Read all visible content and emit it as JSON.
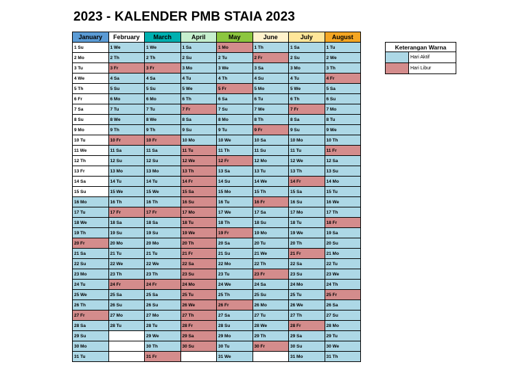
{
  "title": "2023 - KALENDER PMB STAIA 2023",
  "colors": {
    "aktif": "#add8e6",
    "libur": "#d48c8c"
  },
  "legend": {
    "title": "Keterangan Warna",
    "items": [
      {
        "label": "Hari Aktif",
        "type": "a"
      },
      {
        "label": "Hari Libur",
        "type": "h"
      }
    ]
  },
  "months": [
    {
      "name": "January",
      "color": "#5b9bd5",
      "days": [
        [
          "1 Su",
          "w"
        ],
        [
          "2 Mo",
          "w"
        ],
        [
          "3 Tu",
          "w"
        ],
        [
          "4 We",
          "w"
        ],
        [
          "5 Th",
          "w"
        ],
        [
          "6 Fr",
          "w"
        ],
        [
          "7 Sa",
          "w"
        ],
        [
          "8 Su",
          "w"
        ],
        [
          "9 Mo",
          "w"
        ],
        [
          "10 Tu",
          "w"
        ],
        [
          "11 We",
          "w"
        ],
        [
          "12 Th",
          "w"
        ],
        [
          "13 Fr",
          "w"
        ],
        [
          "14 Sa",
          "w"
        ],
        [
          "15 Su",
          "w"
        ],
        [
          "16 Mo",
          "a"
        ],
        [
          "17 Tu",
          "a"
        ],
        [
          "18 We",
          "a"
        ],
        [
          "19 Th",
          "a"
        ],
        [
          "20 Fr",
          "h"
        ],
        [
          "21 Sa",
          "a"
        ],
        [
          "22 Su",
          "a"
        ],
        [
          "23 Mo",
          "a"
        ],
        [
          "24 Tu",
          "a"
        ],
        [
          "25 We",
          "a"
        ],
        [
          "26 Th",
          "a"
        ],
        [
          "27 Fr",
          "h"
        ],
        [
          "28 Sa",
          "a"
        ],
        [
          "29 Su",
          "a"
        ],
        [
          "30 Mo",
          "a"
        ],
        [
          "31 Tu",
          "a"
        ]
      ]
    },
    {
      "name": "February",
      "color": "#ffffff",
      "days": [
        [
          "1 We",
          "a"
        ],
        [
          "2 Th",
          "a"
        ],
        [
          "3 Fr",
          "h"
        ],
        [
          "4 Sa",
          "a"
        ],
        [
          "5 Su",
          "a"
        ],
        [
          "6 Mo",
          "a"
        ],
        [
          "7 Tu",
          "a"
        ],
        [
          "8 We",
          "a"
        ],
        [
          "9 Th",
          "a"
        ],
        [
          "10 Fr",
          "h"
        ],
        [
          "11 Sa",
          "a"
        ],
        [
          "12 Su",
          "a"
        ],
        [
          "13 Mo",
          "a"
        ],
        [
          "14 Tu",
          "a"
        ],
        [
          "15 We",
          "a"
        ],
        [
          "16 Th",
          "a"
        ],
        [
          "17 Fr",
          "h"
        ],
        [
          "18 Sa",
          "a"
        ],
        [
          "19 Su",
          "a"
        ],
        [
          "20 Mo",
          "a"
        ],
        [
          "21 Tu",
          "a"
        ],
        [
          "22 We",
          "a"
        ],
        [
          "23 Th",
          "a"
        ],
        [
          "24 Fr",
          "h"
        ],
        [
          "25 Sa",
          "a"
        ],
        [
          "26 Su",
          "a"
        ],
        [
          "27 Mo",
          "a"
        ],
        [
          "28 Tu",
          "a"
        ]
      ]
    },
    {
      "name": "March",
      "color": "#00b0b0",
      "days": [
        [
          "1 We",
          "a"
        ],
        [
          "2 Th",
          "a"
        ],
        [
          "3 Fr",
          "h"
        ],
        [
          "4 Sa",
          "a"
        ],
        [
          "5 Su",
          "a"
        ],
        [
          "6 Mo",
          "a"
        ],
        [
          "7 Tu",
          "a"
        ],
        [
          "8 We",
          "a"
        ],
        [
          "9 Th",
          "a"
        ],
        [
          "10 Fr",
          "h"
        ],
        [
          "11 Sa",
          "a"
        ],
        [
          "12 Su",
          "a"
        ],
        [
          "13 Mo",
          "a"
        ],
        [
          "14 Tu",
          "a"
        ],
        [
          "15 We",
          "a"
        ],
        [
          "16 Th",
          "a"
        ],
        [
          "17 Fr",
          "h"
        ],
        [
          "18 Sa",
          "a"
        ],
        [
          "19 Su",
          "a"
        ],
        [
          "20 Mo",
          "a"
        ],
        [
          "21 Tu",
          "a"
        ],
        [
          "22 We",
          "a"
        ],
        [
          "23 Th",
          "a"
        ],
        [
          "24 Fr",
          "h"
        ],
        [
          "25 Sa",
          "a"
        ],
        [
          "26 Su",
          "a"
        ],
        [
          "27 Mo",
          "a"
        ],
        [
          "28 Tu",
          "a"
        ],
        [
          "29 We",
          "a"
        ],
        [
          "30 Th",
          "a"
        ],
        [
          "31 Fr",
          "h"
        ]
      ]
    },
    {
      "name": "April",
      "color": "#c6efce",
      "days": [
        [
          "1 Sa",
          "a"
        ],
        [
          "2 Su",
          "a"
        ],
        [
          "3 Mo",
          "a"
        ],
        [
          "4 Tu",
          "a"
        ],
        [
          "5 We",
          "a"
        ],
        [
          "6 Th",
          "a"
        ],
        [
          "7 Fr",
          "h"
        ],
        [
          "8 Sa",
          "a"
        ],
        [
          "9 Su",
          "a"
        ],
        [
          "10 Mo",
          "a"
        ],
        [
          "11 Tu",
          "h"
        ],
        [
          "12 We",
          "h"
        ],
        [
          "13 Th",
          "h"
        ],
        [
          "14 Fr",
          "h"
        ],
        [
          "15 Sa",
          "h"
        ],
        [
          "16 Su",
          "h"
        ],
        [
          "17 Mo",
          "h"
        ],
        [
          "18 Tu",
          "h"
        ],
        [
          "19 We",
          "h"
        ],
        [
          "20 Th",
          "h"
        ],
        [
          "21 Fr",
          "h"
        ],
        [
          "22 Sa",
          "h"
        ],
        [
          "23 Su",
          "h"
        ],
        [
          "24 Mo",
          "h"
        ],
        [
          "25 Tu",
          "h"
        ],
        [
          "26 We",
          "h"
        ],
        [
          "27 Th",
          "h"
        ],
        [
          "28 Fr",
          "h"
        ],
        [
          "29 Sa",
          "h"
        ],
        [
          "30 Su",
          "h"
        ]
      ]
    },
    {
      "name": "May",
      "color": "#8cc63f",
      "days": [
        [
          "1 Mo",
          "h"
        ],
        [
          "2 Tu",
          "a"
        ],
        [
          "3 We",
          "a"
        ],
        [
          "4 Th",
          "a"
        ],
        [
          "5 Fr",
          "h"
        ],
        [
          "6 Sa",
          "a"
        ],
        [
          "7 Su",
          "a"
        ],
        [
          "8 Mo",
          "a"
        ],
        [
          "9 Tu",
          "a"
        ],
        [
          "10 We",
          "a"
        ],
        [
          "11 Th",
          "a"
        ],
        [
          "12 Fr",
          "h"
        ],
        [
          "13 Sa",
          "a"
        ],
        [
          "14 Su",
          "a"
        ],
        [
          "15 Mo",
          "a"
        ],
        [
          "16 Tu",
          "a"
        ],
        [
          "17 We",
          "a"
        ],
        [
          "18 Th",
          "a"
        ],
        [
          "19 Fr",
          "h"
        ],
        [
          "20 Sa",
          "a"
        ],
        [
          "21 Su",
          "a"
        ],
        [
          "22 Mo",
          "a"
        ],
        [
          "23 Tu",
          "a"
        ],
        [
          "24 We",
          "a"
        ],
        [
          "25 Th",
          "a"
        ],
        [
          "26 Fr",
          "h"
        ],
        [
          "27 Sa",
          "a"
        ],
        [
          "28 Su",
          "a"
        ],
        [
          "29 Mo",
          "a"
        ],
        [
          "30 Tu",
          "a"
        ],
        [
          "31 We",
          "a"
        ]
      ]
    },
    {
      "name": "June",
      "color": "#fff2cc",
      "days": [
        [
          "1 Th",
          "a"
        ],
        [
          "2 Fr",
          "h"
        ],
        [
          "3 Sa",
          "a"
        ],
        [
          "4 Su",
          "a"
        ],
        [
          "5 Mo",
          "a"
        ],
        [
          "6 Tu",
          "a"
        ],
        [
          "7 We",
          "a"
        ],
        [
          "8 Th",
          "a"
        ],
        [
          "9 Fr",
          "h"
        ],
        [
          "10 Sa",
          "a"
        ],
        [
          "11 Su",
          "a"
        ],
        [
          "12 Mo",
          "a"
        ],
        [
          "13 Tu",
          "a"
        ],
        [
          "14 We",
          "a"
        ],
        [
          "15 Th",
          "a"
        ],
        [
          "16 Fr",
          "h"
        ],
        [
          "17 Sa",
          "a"
        ],
        [
          "18 Su",
          "a"
        ],
        [
          "19 Mo",
          "a"
        ],
        [
          "20 Tu",
          "a"
        ],
        [
          "21 We",
          "a"
        ],
        [
          "22 Th",
          "a"
        ],
        [
          "23 Fr",
          "h"
        ],
        [
          "24 Sa",
          "a"
        ],
        [
          "25 Su",
          "a"
        ],
        [
          "26 Mo",
          "a"
        ],
        [
          "27 Tu",
          "a"
        ],
        [
          "28 We",
          "a"
        ],
        [
          "29 Th",
          "a"
        ],
        [
          "30 Fr",
          "h"
        ]
      ]
    },
    {
      "name": "July",
      "color": "#ffe699",
      "days": [
        [
          "1 Sa",
          "a"
        ],
        [
          "2 Su",
          "a"
        ],
        [
          "3 Mo",
          "a"
        ],
        [
          "4 Tu",
          "a"
        ],
        [
          "5 We",
          "a"
        ],
        [
          "6 Th",
          "a"
        ],
        [
          "7 Fr",
          "h"
        ],
        [
          "8 Sa",
          "a"
        ],
        [
          "9 Su",
          "a"
        ],
        [
          "10 Mo",
          "a"
        ],
        [
          "11 Tu",
          "a"
        ],
        [
          "12 We",
          "a"
        ],
        [
          "13 Th",
          "a"
        ],
        [
          "14 Fr",
          "h"
        ],
        [
          "15 Sa",
          "a"
        ],
        [
          "16 Su",
          "a"
        ],
        [
          "17 Mo",
          "a"
        ],
        [
          "18 Tu",
          "a"
        ],
        [
          "19 We",
          "a"
        ],
        [
          "20 Th",
          "a"
        ],
        [
          "21 Fr",
          "h"
        ],
        [
          "22 Sa",
          "a"
        ],
        [
          "23 Su",
          "a"
        ],
        [
          "24 Mo",
          "a"
        ],
        [
          "25 Tu",
          "a"
        ],
        [
          "26 We",
          "a"
        ],
        [
          "27 Th",
          "a"
        ],
        [
          "28 Fr",
          "h"
        ],
        [
          "29 Sa",
          "a"
        ],
        [
          "30 Su",
          "a"
        ],
        [
          "31 Mo",
          "a"
        ]
      ]
    },
    {
      "name": "August",
      "color": "#f4a623",
      "days": [
        [
          "1 Tu",
          "a"
        ],
        [
          "2 We",
          "a"
        ],
        [
          "3 Th",
          "a"
        ],
        [
          "4 Fr",
          "h"
        ],
        [
          "5 Sa",
          "a"
        ],
        [
          "6 Su",
          "a"
        ],
        [
          "7 Mo",
          "a"
        ],
        [
          "8 Tu",
          "a"
        ],
        [
          "9 We",
          "a"
        ],
        [
          "10 Th",
          "a"
        ],
        [
          "11 Fr",
          "h"
        ],
        [
          "12 Sa",
          "a"
        ],
        [
          "13 Su",
          "a"
        ],
        [
          "14 Mo",
          "a"
        ],
        [
          "15 Tu",
          "a"
        ],
        [
          "16 We",
          "a"
        ],
        [
          "17 Th",
          "a"
        ],
        [
          "18 Fr",
          "h"
        ],
        [
          "19 Sa",
          "a"
        ],
        [
          "20 Su",
          "a"
        ],
        [
          "21 Mo",
          "a"
        ],
        [
          "22 Tu",
          "a"
        ],
        [
          "23 We",
          "a"
        ],
        [
          "24 Th",
          "a"
        ],
        [
          "25 Fr",
          "h"
        ],
        [
          "26 Sa",
          "a"
        ],
        [
          "27 Su",
          "a"
        ],
        [
          "28 Mo",
          "a"
        ],
        [
          "29 Tu",
          "a"
        ],
        [
          "30 We",
          "a"
        ],
        [
          "31 Th",
          "a"
        ]
      ]
    }
  ]
}
